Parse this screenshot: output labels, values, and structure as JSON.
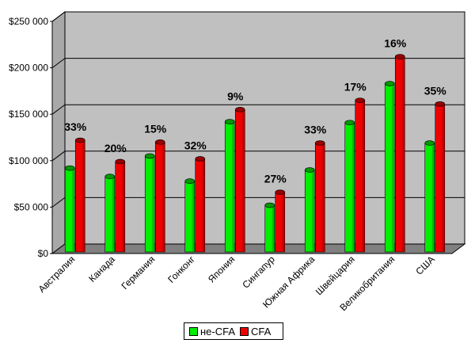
{
  "chart_data": {
    "type": "bar",
    "title": "",
    "xlabel": "",
    "ylabel": "",
    "ylim": [
      0,
      250000
    ],
    "yticks": [
      "$0",
      "$50 000",
      "$100 000",
      "$150 000",
      "$200 000",
      "$250 000"
    ],
    "categories": [
      "Австралия",
      "Канада",
      "Германия",
      "Гонконг",
      "Япония",
      "Сингапур",
      "Южная Африка",
      "Швейцария",
      "Великобритания",
      "США"
    ],
    "series": [
      {
        "name": "не-CFA",
        "color": "#00ee00",
        "values": [
          92000,
          83000,
          105000,
          78000,
          142000,
          52000,
          90000,
          141000,
          183000,
          119000
        ]
      },
      {
        "name": "CFA",
        "color": "#ee0000",
        "values": [
          122000,
          99000,
          120000,
          102000,
          155000,
          66000,
          119000,
          165000,
          212000,
          161000
        ]
      }
    ],
    "data_labels": [
      "33%",
      "20%",
      "15%",
      "32%",
      "9%",
      "27%",
      "33%",
      "17%",
      "16%",
      "35%"
    ],
    "grid": true,
    "legend": "bottom",
    "wall_color": "#c0c0c0",
    "floor_color": "#808080"
  },
  "legend": {
    "items": [
      "не-CFA",
      "CFA"
    ]
  }
}
